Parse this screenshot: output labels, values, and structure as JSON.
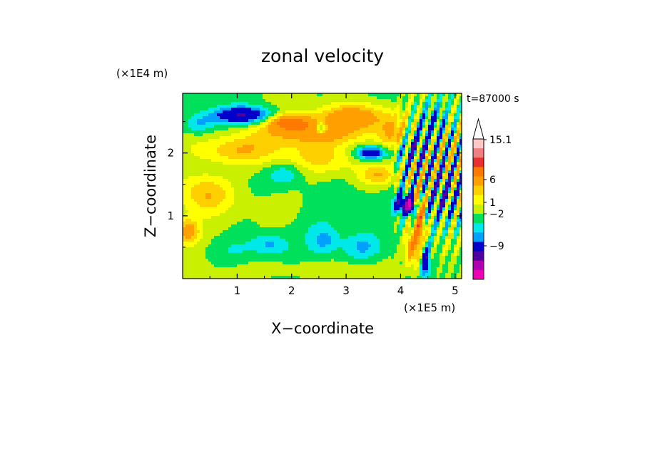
{
  "chart_data": {
    "type": "heatmap",
    "title": "zonal velocity",
    "xlabel": "X−coordinate",
    "ylabel": "Z−coordinate",
    "x_unit": "(×1E5 m)",
    "y_unit": "(×1E4 m)",
    "time_label": "t=87000 s",
    "xlim": [
      0,
      5.12
    ],
    "ylim": [
      0,
      2.95
    ],
    "x_ticks": [
      "1",
      "2",
      "3",
      "4",
      "5"
    ],
    "y_ticks": [
      "1",
      "2"
    ],
    "x_tick_values": [
      1,
      2,
      3,
      4,
      5
    ],
    "y_tick_values": [
      1,
      2
    ],
    "colorbar": {
      "labels": [
        "15.1",
        "6",
        "1",
        "−2",
        "−9"
      ],
      "label_values": [
        15.1,
        6,
        1,
        -2,
        -9
      ],
      "colors_top_to_bottom": [
        "#ffc8c8",
        "#f08080",
        "#e83030",
        "#ff7800",
        "#ffa000",
        "#ffd000",
        "#ffff00",
        "#c8f000",
        "#00e05a",
        "#00e8e8",
        "#00a0ff",
        "#0000c8",
        "#5000a0",
        "#b000b0",
        "#f000b4"
      ]
    },
    "field_levels": [
      {
        "value": 12,
        "color": "#f08080"
      },
      {
        "value": 8,
        "color": "#e83030"
      },
      {
        "value": 5,
        "color": "#ff7800"
      },
      {
        "value": 3,
        "color": "#ffa000"
      },
      {
        "value": 2,
        "color": "#ffd000"
      },
      {
        "value": 1,
        "color": "#ffff00"
      },
      {
        "value": 0,
        "color": "#c8f000"
      },
      {
        "value": -1,
        "color": "#00e05a"
      },
      {
        "value": -2,
        "color": "#00e8e8"
      },
      {
        "value": -3,
        "color": "#00a0ff"
      },
      {
        "value": -5,
        "color": "#0000c8"
      },
      {
        "value": -8,
        "color": "#5000a0"
      },
      {
        "value": -10,
        "color": "#b000b0"
      },
      {
        "value": -99,
        "color": "#f000b4"
      }
    ],
    "features": [
      {
        "x": 1.1,
        "z": 2.6,
        "value": -5,
        "sx": 0.6,
        "sz": 0.14
      },
      {
        "x": 0.3,
        "z": 2.45,
        "value": -2,
        "sx": 0.25,
        "sz": 0.15
      },
      {
        "x": 2.4,
        "z": 2.35,
        "value": 4,
        "sx": 1.1,
        "sz": 0.22
      },
      {
        "x": 1.95,
        "z": 2.5,
        "value": 5,
        "sx": 0.35,
        "sz": 0.12
      },
      {
        "x": 3.2,
        "z": 2.6,
        "value": 4,
        "sx": 0.6,
        "sz": 0.2
      },
      {
        "x": 3.45,
        "z": 2.0,
        "value": -5,
        "sx": 0.3,
        "sz": 0.12
      },
      {
        "x": 2.55,
        "z": 2.4,
        "value": -4,
        "sx": 0.12,
        "sz": 0.1
      },
      {
        "x": 1.0,
        "z": 2.05,
        "value": 3,
        "sx": 0.7,
        "sz": 0.22
      },
      {
        "x": 3.6,
        "z": 1.65,
        "value": 3,
        "sx": 0.35,
        "sz": 0.18
      },
      {
        "x": 2.5,
        "z": 1.9,
        "value": 2,
        "sx": 1.0,
        "sz": 0.25
      },
      {
        "x": 1.9,
        "z": 1.7,
        "value": -2,
        "sx": 0.35,
        "sz": 0.2
      },
      {
        "x": 0.45,
        "z": 1.35,
        "value": 3,
        "sx": 0.45,
        "sz": 0.3
      },
      {
        "x": 0.1,
        "z": 0.75,
        "value": 4,
        "sx": 0.2,
        "sz": 0.2
      },
      {
        "x": 1.7,
        "z": 1.1,
        "value": 1,
        "sx": 0.6,
        "sz": 0.3
      },
      {
        "x": 2.8,
        "z": 1.0,
        "value": -1,
        "sx": 0.9,
        "sz": 0.6
      },
      {
        "x": 2.6,
        "z": 0.6,
        "value": -2,
        "sx": 0.25,
        "sz": 0.2
      },
      {
        "x": 1.6,
        "z": 0.55,
        "value": -2,
        "sx": 0.3,
        "sz": 0.15
      },
      {
        "x": 0.9,
        "z": 0.45,
        "value": -1,
        "sx": 0.5,
        "sz": 0.25
      },
      {
        "x": 3.3,
        "z": 0.5,
        "value": -2,
        "sx": 0.35,
        "sz": 0.2
      },
      {
        "x": 2.2,
        "z": 0.15,
        "value": 1,
        "sx": 1.2,
        "sz": 0.12
      },
      {
        "x": 4.05,
        "z": 1.2,
        "value": -6,
        "sx": 0.15,
        "sz": 0.15
      },
      {
        "x": 4.2,
        "z": 1.15,
        "value": -9,
        "sx": 0.07,
        "sz": 0.12
      },
      {
        "x": 4.35,
        "z": 0.9,
        "value": 6,
        "sx": 0.1,
        "sz": 0.5
      },
      {
        "x": 4.45,
        "z": 0.3,
        "value": -5,
        "sx": 0.08,
        "sz": 0.25
      },
      {
        "x": 4.2,
        "z": 0.5,
        "value": 4,
        "sx": 0.12,
        "sz": 0.3
      },
      {
        "x": 4.75,
        "z": 1.4,
        "value": -3,
        "sx": 0.25,
        "sz": 0.4
      },
      {
        "x": 4.85,
        "z": 0.6,
        "value": 1,
        "sx": 0.2,
        "sz": 0.3
      },
      {
        "x": 4.2,
        "z": 2.1,
        "value": -3,
        "sx": 0.25,
        "sz": 0.3
      },
      {
        "x": 4.6,
        "z": 2.5,
        "value": -2,
        "sx": 0.25,
        "sz": 0.35
      },
      {
        "x": 3.9,
        "z": 2.3,
        "value": 3,
        "sx": 0.3,
        "sz": 0.25
      }
    ]
  }
}
